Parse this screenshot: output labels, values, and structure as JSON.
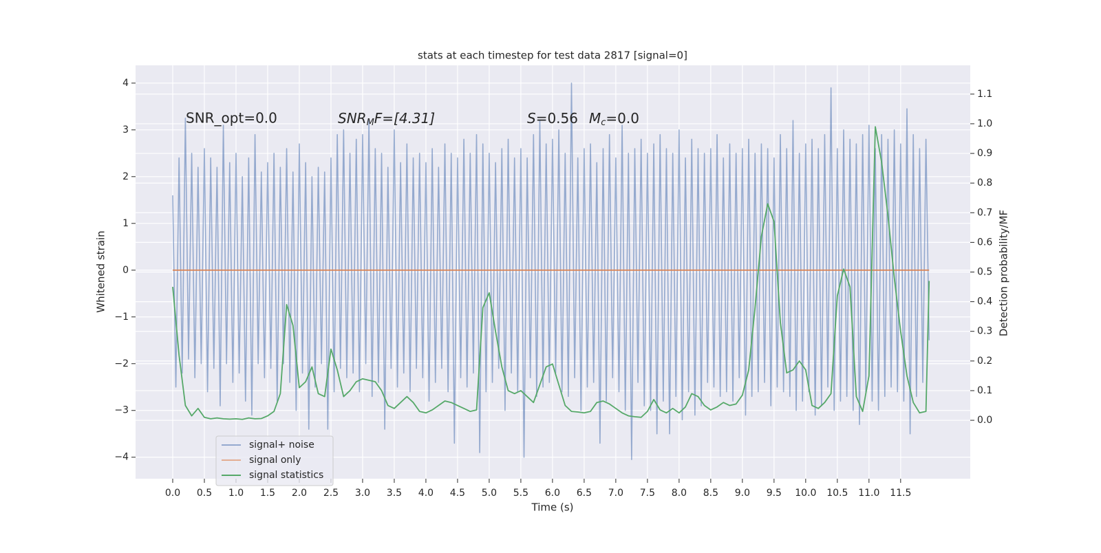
{
  "chart_data": {
    "type": "line",
    "title": "stats at each timestep for test data 2817 [signal=0]",
    "xlabel": "Time (s)",
    "ylabel": "Whitened strain",
    "y2label": "Detection probability/MF",
    "annotations": [
      "SNR_opt=0.0",
      [
        "SNR",
        "M",
        "F=[4.31]"
      ],
      [
        "S",
        "=0.56",
        "M",
        "c",
        "=0.0"
      ]
    ],
    "xlim": [
      -0.587,
      12.6
    ],
    "ylim": [
      -4.46,
      4.38
    ],
    "y2lim": [
      -0.197,
      1.197
    ],
    "xticks": [
      {
        "value": 0,
        "label": "0.0"
      },
      0.5,
      {
        "value": 1,
        "label": "1.0"
      },
      1.5,
      {
        "value": 2,
        "label": "2.0"
      },
      2.5,
      {
        "value": 3,
        "label": "3.0"
      },
      3.5,
      {
        "value": 4,
        "label": "4.0"
      },
      4.5,
      {
        "value": 5,
        "label": "5.0"
      },
      5.5,
      {
        "value": 6,
        "label": "6.0"
      },
      6.5,
      {
        "value": 7,
        "label": "7.0"
      },
      7.5,
      {
        "value": 8,
        "label": "8.0"
      },
      8.5,
      {
        "value": 9,
        "label": "9.0"
      },
      9.5,
      {
        "value": 10,
        "label": "10.0"
      },
      10.5,
      {
        "value": 11,
        "label": "11.0"
      },
      11.5
    ],
    "yticks": [
      {
        "value": -4,
        "label": "−4"
      },
      {
        "value": -3,
        "label": "−3"
      },
      {
        "value": -2,
        "label": "−2"
      },
      {
        "value": -1,
        "label": "−1"
      },
      0,
      1,
      2,
      3,
      4
    ],
    "y2ticks": [
      {
        "value": 0,
        "label": "0.0"
      },
      0.1,
      0.2,
      0.3,
      0.4,
      0.5,
      0.6,
      0.7,
      0.8,
      0.9,
      {
        "value": 1,
        "label": "1.0"
      },
      1.1
    ],
    "grid": true,
    "legend": "lower left",
    "series": [
      {
        "name": "signal+ noise",
        "color": "#4c72b0",
        "x": [
          0,
          0.05,
          0.1,
          0.15,
          0.2,
          0.25,
          0.3,
          0.35,
          0.4,
          0.45,
          0.5,
          0.55,
          0.6,
          0.65,
          0.7,
          0.75,
          0.8,
          0.85,
          0.9,
          0.95,
          1,
          1.05,
          1.1,
          1.15,
          1.2,
          1.25,
          1.3,
          1.35,
          1.4,
          1.45,
          1.5,
          1.55,
          1.6,
          1.65,
          1.7,
          1.75,
          1.8,
          1.85,
          1.9,
          1.95,
          2,
          2.05,
          2.1,
          2.15,
          2.2,
          2.25,
          2.3,
          2.35,
          2.4,
          2.45,
          2.5,
          2.55,
          2.6,
          2.65,
          2.7,
          2.75,
          2.8,
          2.85,
          2.9,
          2.95,
          3,
          3.05,
          3.1,
          3.15,
          3.2,
          3.25,
          3.3,
          3.35,
          3.4,
          3.45,
          3.5,
          3.55,
          3.6,
          3.65,
          3.7,
          3.75,
          3.8,
          3.85,
          3.9,
          3.95,
          4,
          4.05,
          4.1,
          4.15,
          4.2,
          4.25,
          4.3,
          4.35,
          4.4,
          4.45,
          4.5,
          4.55,
          4.6,
          4.65,
          4.7,
          4.75,
          4.8,
          4.85,
          4.9,
          4.95,
          5,
          5.05,
          5.1,
          5.15,
          5.2,
          5.25,
          5.3,
          5.35,
          5.4,
          5.45,
          5.5,
          5.55,
          5.6,
          5.65,
          5.7,
          5.75,
          5.8,
          5.85,
          5.9,
          5.95,
          6,
          6.05,
          6.1,
          6.15,
          6.2,
          6.25,
          6.3,
          6.35,
          6.4,
          6.45,
          6.5,
          6.55,
          6.6,
          6.65,
          6.7,
          6.75,
          6.8,
          6.85,
          6.9,
          6.95,
          7,
          7.05,
          7.1,
          7.15,
          7.2,
          7.25,
          7.3,
          7.35,
          7.4,
          7.45,
          7.5,
          7.55,
          7.6,
          7.65,
          7.7,
          7.75,
          7.8,
          7.85,
          7.9,
          7.95,
          8,
          8.05,
          8.1,
          8.15,
          8.2,
          8.25,
          8.3,
          8.35,
          8.4,
          8.45,
          8.5,
          8.55,
          8.6,
          8.65,
          8.7,
          8.75,
          8.8,
          8.85,
          8.9,
          8.95,
          9,
          9.05,
          9.1,
          9.15,
          9.2,
          9.25,
          9.3,
          9.35,
          9.4,
          9.45,
          9.5,
          9.55,
          9.6,
          9.65,
          9.7,
          9.75,
          9.8,
          9.85,
          9.9,
          9.95,
          10,
          10.05,
          10.1,
          10.15,
          10.2,
          10.25,
          10.3,
          10.35,
          10.4,
          10.45,
          10.5,
          10.55,
          10.6,
          10.65,
          10.7,
          10.75,
          10.8,
          10.85,
          10.9,
          10.95,
          11,
          11.05,
          11.1,
          11.15,
          11.2,
          11.25,
          11.3,
          11.35,
          11.4,
          11.45,
          11.5,
          11.55,
          11.6,
          11.65,
          11.7,
          11.75,
          11.8,
          11.85,
          11.9,
          11.95
        ],
        "values": [
          1.6,
          -2.5,
          2.4,
          -2.2,
          3.25,
          -1.9,
          2.5,
          -2.3,
          2.2,
          -2.0,
          2.6,
          -2.6,
          2.4,
          -2.1,
          2.2,
          -2.9,
          3.1,
          -2.0,
          2.3,
          -2.4,
          2.5,
          -2.2,
          2.0,
          -2.8,
          2.4,
          -3.1,
          2.9,
          -2.0,
          2.1,
          -2.3,
          2.3,
          -2.1,
          2.5,
          -2.8,
          2.2,
          -2.0,
          2.6,
          -2.4,
          2.1,
          -3.0,
          2.7,
          -2.2,
          2.3,
          -3.4,
          2.0,
          -2.5,
          2.2,
          -2.0,
          2.1,
          -3.4,
          2.4,
          -2.6,
          2.9,
          -2.1,
          3.0,
          -2.3,
          2.5,
          -2.2,
          2.8,
          -2.6,
          2.9,
          -2.0,
          3.2,
          -2.7,
          2.6,
          -2.4,
          2.5,
          -3.4,
          2.2,
          -2.1,
          3.0,
          -2.5,
          2.3,
          -2.2,
          2.7,
          -2.6,
          2.4,
          -2.1,
          2.5,
          -2.3,
          2.3,
          -2.8,
          2.6,
          -2.4,
          2.2,
          -2.1,
          2.7,
          -2.6,
          2.5,
          -3.7,
          2.4,
          -2.3,
          2.8,
          -2.5,
          2.5,
          -2.2,
          2.9,
          -3.9,
          2.7,
          -2.6,
          2.5,
          -2.4,
          2.3,
          -2.1,
          2.6,
          -3.0,
          2.8,
          -2.2,
          2.4,
          -2.6,
          2.6,
          -4.0,
          2.4,
          -2.3,
          2.9,
          -2.7,
          3.2,
          -2.5,
          2.7,
          -2.4,
          2.8,
          -2.2,
          3.0,
          -2.6,
          2.5,
          -2.7,
          4.0,
          -2.3,
          2.4,
          -3.0,
          2.6,
          -2.5,
          2.7,
          -2.4,
          2.3,
          -3.7,
          2.6,
          -2.8,
          2.9,
          -2.3,
          2.4,
          -2.6,
          3.1,
          -3.0,
          2.5,
          -4.05,
          2.6,
          -2.4,
          2.8,
          -2.9,
          2.5,
          -3.0,
          2.7,
          -3.5,
          2.9,
          -2.8,
          2.6,
          -3.5,
          2.5,
          -2.7,
          3.0,
          -3.2,
          2.4,
          -2.6,
          2.8,
          -3.1,
          2.6,
          -2.9,
          2.5,
          -2.4,
          2.6,
          -2.5,
          2.9,
          -2.7,
          2.4,
          -2.6,
          2.7,
          -2.8,
          2.5,
          -2.3,
          2.6,
          -3.1,
          2.8,
          -2.7,
          2.5,
          -2.6,
          2.7,
          -2.4,
          2.6,
          -2.9,
          2.4,
          -2.5,
          2.9,
          -2.6,
          2.6,
          -2.7,
          3.2,
          -3.0,
          2.5,
          -2.8,
          2.7,
          -2.6,
          2.8,
          -3.1,
          2.6,
          -2.9,
          2.9,
          -2.5,
          3.9,
          -3.0,
          2.6,
          -2.8,
          3.0,
          -2.7,
          2.8,
          -3.0,
          2.7,
          -3.3,
          2.9,
          -2.6,
          3.1,
          -2.8,
          2.6,
          -3.0,
          2.9,
          -2.7,
          2.8,
          -2.5,
          3.0,
          -2.6,
          2.7,
          -2.8,
          3.45,
          -3.5,
          2.9,
          -2.7,
          2.6,
          -2.4,
          2.8,
          -1.5
        ]
      },
      {
        "name": "signal only",
        "color": "#dd8452",
        "x": [
          0,
          11.95
        ],
        "values": [
          0,
          0
        ]
      },
      {
        "name": "signal statistics",
        "color": "#55a868",
        "axis": "y2",
        "x": [
          0,
          0.1,
          0.2,
          0.3,
          0.4,
          0.5,
          0.6,
          0.7,
          0.8,
          0.9,
          1,
          1.1,
          1.2,
          1.3,
          1.4,
          1.5,
          1.6,
          1.7,
          1.8,
          1.9,
          2,
          2.1,
          2.2,
          2.3,
          2.4,
          2.5,
          2.6,
          2.7,
          2.8,
          2.9,
          3,
          3.1,
          3.2,
          3.3,
          3.4,
          3.5,
          3.6,
          3.7,
          3.8,
          3.9,
          4,
          4.1,
          4.2,
          4.3,
          4.4,
          4.5,
          4.6,
          4.7,
          4.8,
          4.9,
          5,
          5.1,
          5.2,
          5.3,
          5.4,
          5.5,
          5.6,
          5.7,
          5.8,
          5.9,
          6,
          6.1,
          6.2,
          6.3,
          6.4,
          6.5,
          6.6,
          6.7,
          6.8,
          6.9,
          7,
          7.1,
          7.2,
          7.3,
          7.4,
          7.5,
          7.6,
          7.7,
          7.8,
          7.9,
          8,
          8.1,
          8.2,
          8.3,
          8.4,
          8.5,
          8.6,
          8.7,
          8.8,
          8.9,
          9,
          9.1,
          9.2,
          9.3,
          9.4,
          9.5,
          9.6,
          9.7,
          9.8,
          9.9,
          10,
          10.1,
          10.2,
          10.3,
          10.4,
          10.5,
          10.6,
          10.7,
          10.8,
          10.9,
          11,
          11.1,
          11.2,
          11.3,
          11.4,
          11.5,
          11.6,
          11.7,
          11.8,
          11.9,
          11.95
        ],
        "values": [
          0.45,
          0.22,
          0.05,
          0.015,
          0.04,
          0.01,
          0.005,
          0.008,
          0.005,
          0.004,
          0.005,
          0.003,
          0.008,
          0.005,
          0.006,
          0.015,
          0.03,
          0.09,
          0.39,
          0.32,
          0.11,
          0.13,
          0.18,
          0.09,
          0.08,
          0.24,
          0.17,
          0.08,
          0.1,
          0.13,
          0.14,
          0.135,
          0.13,
          0.1,
          0.05,
          0.04,
          0.06,
          0.08,
          0.06,
          0.03,
          0.025,
          0.035,
          0.05,
          0.065,
          0.06,
          0.05,
          0.04,
          0.03,
          0.035,
          0.38,
          0.43,
          0.3,
          0.18,
          0.1,
          0.09,
          0.1,
          0.08,
          0.06,
          0.12,
          0.18,
          0.19,
          0.12,
          0.05,
          0.03,
          0.028,
          0.025,
          0.03,
          0.06,
          0.065,
          0.055,
          0.04,
          0.025,
          0.015,
          0.012,
          0.01,
          0.03,
          0.07,
          0.035,
          0.025,
          0.04,
          0.025,
          0.045,
          0.09,
          0.08,
          0.05,
          0.035,
          0.045,
          0.06,
          0.05,
          0.055,
          0.085,
          0.17,
          0.38,
          0.62,
          0.73,
          0.67,
          0.33,
          0.16,
          0.17,
          0.2,
          0.17,
          0.05,
          0.04,
          0.06,
          0.09,
          0.42,
          0.51,
          0.45,
          0.08,
          0.03,
          0.15,
          0.99,
          0.87,
          0.69,
          0.48,
          0.3,
          0.15,
          0.06,
          0.025,
          0.03,
          0.47
        ]
      }
    ]
  }
}
